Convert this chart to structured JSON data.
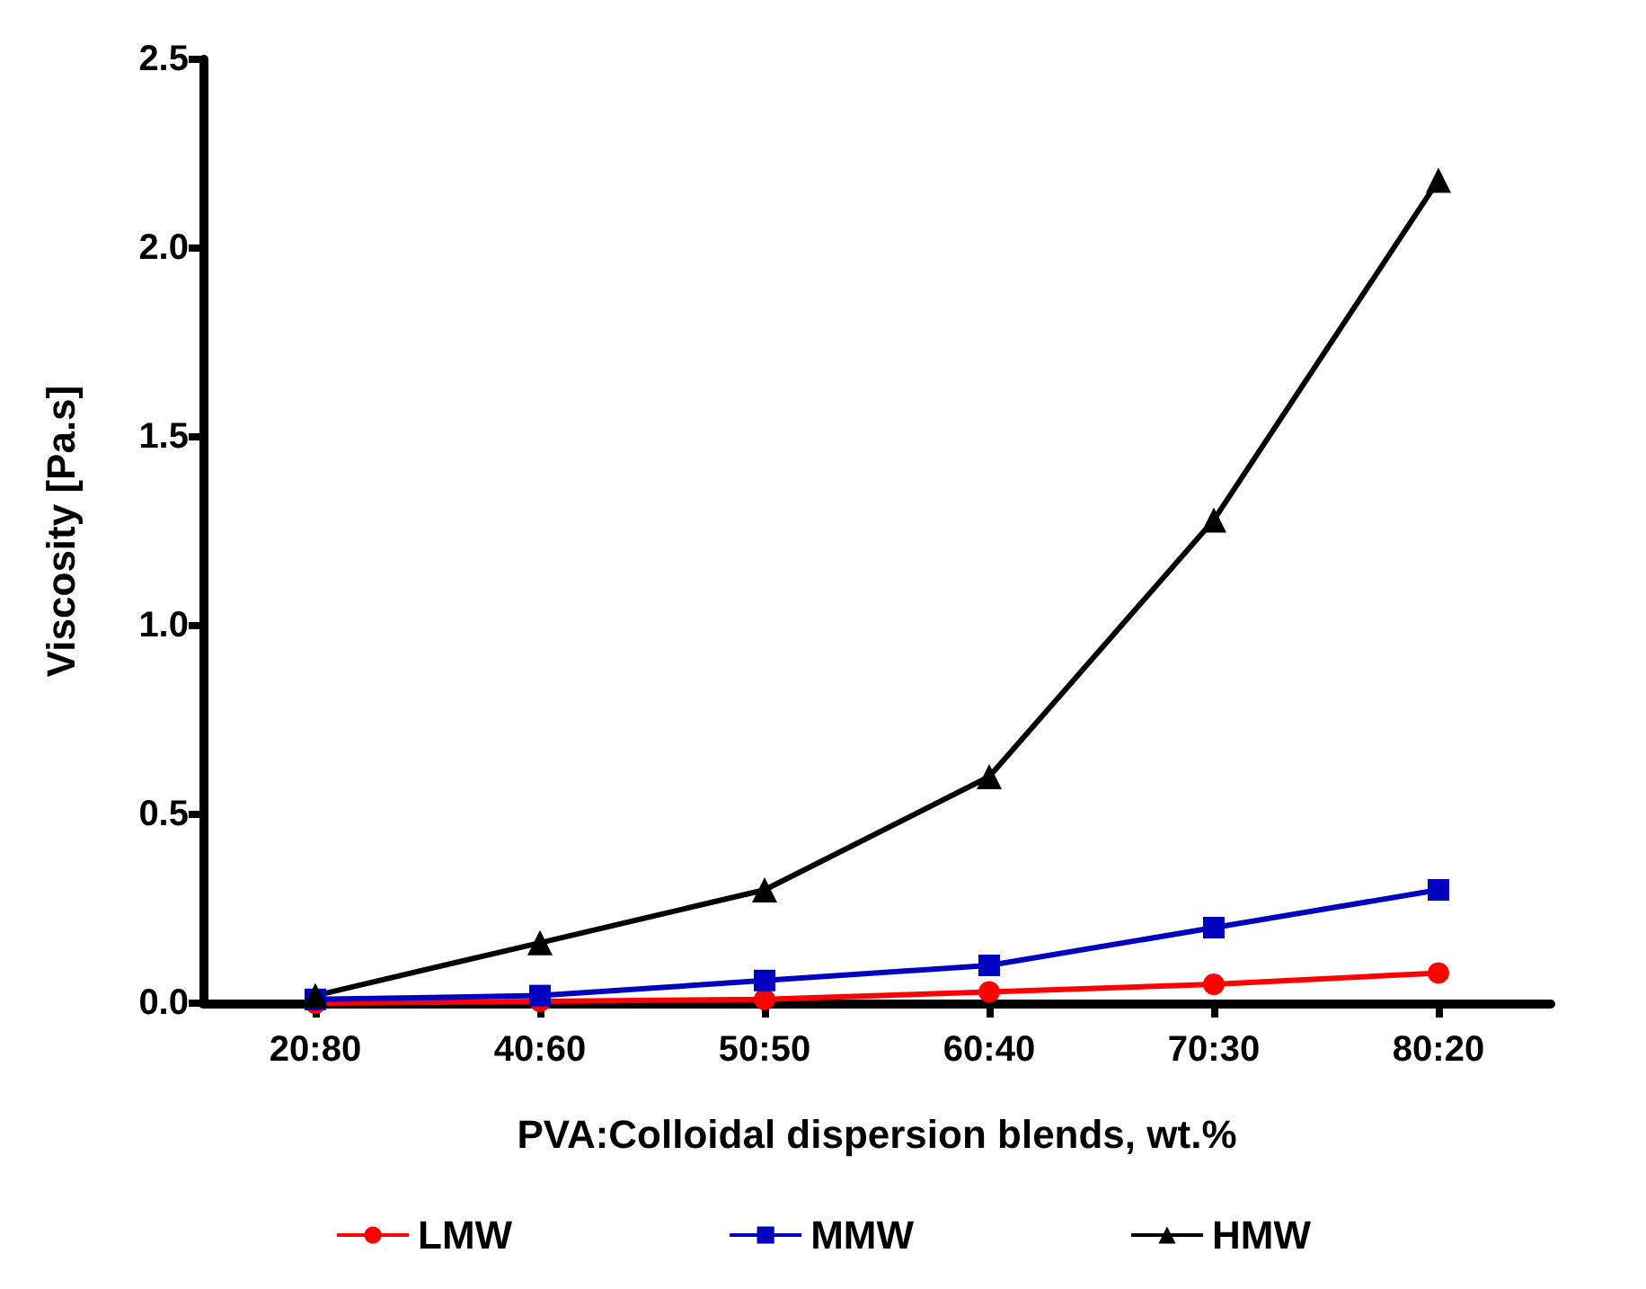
{
  "chart_data": {
    "type": "line",
    "xlabel": "PVA:Colloidal dispersion blends, wt.%",
    "ylabel": "Viscosity [Pa.s]",
    "categories": [
      "20:80",
      "40:60",
      "50:50",
      "60:40",
      "70:30",
      "80:20"
    ],
    "series": [
      {
        "name": "LMW",
        "color": "#ff0000",
        "marker": "circle",
        "values": [
          0.0,
          0.005,
          0.01,
          0.03,
          0.05,
          0.08
        ]
      },
      {
        "name": "MMW",
        "color": "#0000c0",
        "marker": "square",
        "values": [
          0.01,
          0.02,
          0.06,
          0.1,
          0.2,
          0.3
        ]
      },
      {
        "name": "HMW",
        "color": "#000000",
        "marker": "triangle",
        "values": [
          0.02,
          0.16,
          0.3,
          0.6,
          1.28,
          2.18
        ]
      }
    ],
    "ylim": [
      0,
      2.5
    ],
    "yticks": [
      {
        "value": 0,
        "label": "0.0"
      },
      0.5,
      {
        "value": 1,
        "label": "1.0"
      },
      1.5,
      {
        "value": 2,
        "label": "2.0"
      },
      2.5
    ],
    "grid": false,
    "legend": "bottom"
  }
}
